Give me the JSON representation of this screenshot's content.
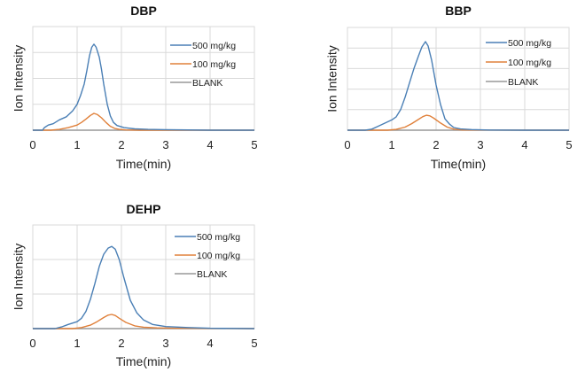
{
  "chart_data": [
    {
      "type": "line",
      "title": "DBP",
      "xlabel": "Time(min)",
      "ylabel": "Ion Intensity",
      "xlim": [
        0,
        5
      ],
      "ylim": [
        0,
        4
      ],
      "xticks": [
        "0",
        "1",
        "2",
        "3",
        "4",
        "5"
      ],
      "y_gridlines": 4,
      "y_units": "relative (1 unit = 1 gridline interval)",
      "grid": true,
      "legend_position": "top-right",
      "series": [
        {
          "name": "500 mg/kg",
          "color": "#4a7fb5",
          "x": [
            0.0,
            0.22,
            0.26,
            0.35,
            0.46,
            0.6,
            0.76,
            0.9,
            1.0,
            1.08,
            1.16,
            1.22,
            1.28,
            1.33,
            1.38,
            1.43,
            1.5,
            1.55,
            1.6,
            1.68,
            1.75,
            1.82,
            1.9,
            2.06,
            2.3,
            2.6,
            3.0,
            4.0,
            5.0
          ],
          "y": [
            0.0,
            0.0,
            0.1,
            0.2,
            0.25,
            0.4,
            0.52,
            0.75,
            1.0,
            1.35,
            1.78,
            2.3,
            2.88,
            3.2,
            3.32,
            3.2,
            2.82,
            2.35,
            1.78,
            1.0,
            0.55,
            0.3,
            0.18,
            0.1,
            0.05,
            0.03,
            0.02,
            0.0,
            0.0
          ]
        },
        {
          "name": "100 mg/kg",
          "color": "#e0803a",
          "x": [
            0.0,
            0.4,
            0.6,
            0.8,
            1.0,
            1.1,
            1.2,
            1.3,
            1.38,
            1.46,
            1.55,
            1.65,
            1.75,
            1.85,
            1.95,
            2.1,
            2.4,
            3.0,
            5.0
          ],
          "y": [
            0.0,
            0.0,
            0.03,
            0.1,
            0.2,
            0.3,
            0.43,
            0.57,
            0.65,
            0.6,
            0.48,
            0.3,
            0.15,
            0.07,
            0.03,
            0.01,
            0.0,
            0.0,
            0.0
          ]
        },
        {
          "name": "BLANK",
          "color": "#999999",
          "x": [
            0,
            5
          ],
          "y": [
            0,
            0
          ]
        }
      ]
    },
    {
      "type": "line",
      "title": "BBP",
      "xlabel": "Time(min)",
      "ylabel": "Ion Intensity",
      "xlim": [
        0,
        5
      ],
      "ylim": [
        0,
        5
      ],
      "xticks": [
        "0",
        "1",
        "2",
        "3",
        "4",
        "5"
      ],
      "y_gridlines": 5,
      "y_units": "relative (1 unit = 1 gridline interval)",
      "grid": true,
      "legend_position": "top-right",
      "series": [
        {
          "name": "500 mg/kg",
          "color": "#4a7fb5",
          "x": [
            0.0,
            0.4,
            0.55,
            0.7,
            0.85,
            1.0,
            1.1,
            1.2,
            1.3,
            1.4,
            1.5,
            1.6,
            1.68,
            1.76,
            1.82,
            1.9,
            2.0,
            2.1,
            2.2,
            2.3,
            2.4,
            2.55,
            2.8,
            3.2,
            4.0,
            5.0
          ],
          "y": [
            0.0,
            0.0,
            0.05,
            0.2,
            0.35,
            0.5,
            0.65,
            1.0,
            1.6,
            2.3,
            3.0,
            3.6,
            4.05,
            4.31,
            4.1,
            3.4,
            2.2,
            1.25,
            0.55,
            0.3,
            0.13,
            0.06,
            0.03,
            0.01,
            0.0,
            0.0
          ]
        },
        {
          "name": "100 mg/kg",
          "color": "#e0803a",
          "x": [
            0.0,
            0.9,
            1.1,
            1.3,
            1.45,
            1.6,
            1.7,
            1.78,
            1.86,
            1.95,
            2.1,
            2.25,
            2.4,
            2.6,
            5.0
          ],
          "y": [
            0.0,
            0.0,
            0.04,
            0.15,
            0.32,
            0.52,
            0.66,
            0.73,
            0.7,
            0.58,
            0.35,
            0.15,
            0.05,
            0.01,
            0.0
          ]
        },
        {
          "name": "BLANK",
          "color": "#999999",
          "x": [
            0,
            5
          ],
          "y": [
            0,
            0
          ]
        }
      ]
    },
    {
      "type": "line",
      "title": "DEHP",
      "xlabel": "Time(min)",
      "ylabel": "Ion Intensity",
      "xlim": [
        0,
        5
      ],
      "ylim": [
        0,
        3
      ],
      "xticks": [
        "0",
        "1",
        "2",
        "3",
        "4",
        "5"
      ],
      "y_gridlines": 3,
      "y_units": "relative (1 unit = 1 gridline interval)",
      "grid": true,
      "legend_position": "top-right",
      "series": [
        {
          "name": "500 mg/kg",
          "color": "#4a7fb5",
          "x": [
            0.0,
            0.5,
            0.65,
            0.8,
            1.0,
            1.1,
            1.2,
            1.3,
            1.4,
            1.5,
            1.6,
            1.7,
            1.78,
            1.86,
            1.95,
            2.05,
            2.2,
            2.35,
            2.5,
            2.7,
            3.0,
            3.5,
            4.0,
            5.0
          ],
          "y": [
            0.0,
            0.0,
            0.05,
            0.12,
            0.2,
            0.3,
            0.5,
            0.85,
            1.3,
            1.8,
            2.15,
            2.33,
            2.38,
            2.3,
            2.0,
            1.5,
            0.82,
            0.45,
            0.25,
            0.12,
            0.06,
            0.03,
            0.01,
            0.0
          ]
        },
        {
          "name": "100 mg/kg",
          "color": "#e0803a",
          "x": [
            0.0,
            0.9,
            1.1,
            1.3,
            1.45,
            1.6,
            1.7,
            1.78,
            1.86,
            1.95,
            2.1,
            2.3,
            2.5,
            2.8,
            3.2,
            5.0
          ],
          "y": [
            0.0,
            0.0,
            0.03,
            0.1,
            0.2,
            0.32,
            0.39,
            0.41,
            0.38,
            0.3,
            0.18,
            0.08,
            0.04,
            0.02,
            0.01,
            0.0
          ]
        },
        {
          "name": "BLANK",
          "color": "#999999",
          "x": [
            0,
            5
          ],
          "y": [
            0,
            0
          ]
        }
      ]
    }
  ]
}
